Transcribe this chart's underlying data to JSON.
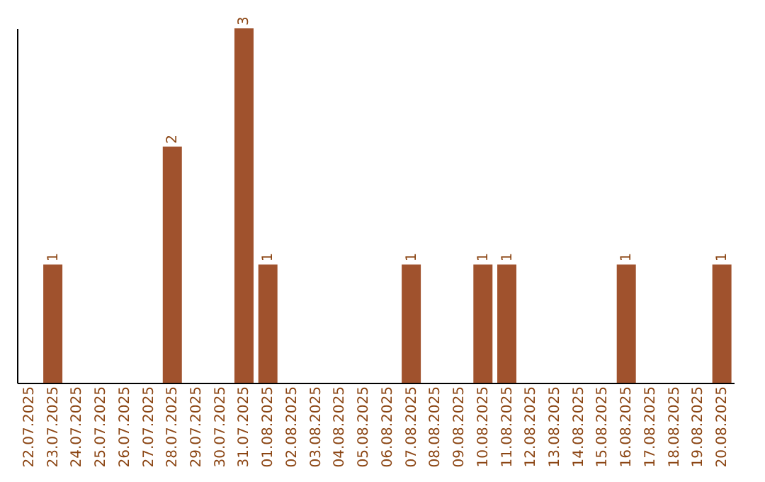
{
  "chart_data": {
    "type": "bar",
    "categories": [
      "22.07.2025",
      "23.07.2025",
      "24.07.2025",
      "25.07.2025",
      "26.07.2025",
      "27.07.2025",
      "28.07.2025",
      "29.07.2025",
      "30.07.2025",
      "31.07.2025",
      "01.08.2025",
      "02.08.2025",
      "03.08.2025",
      "04.08.2025",
      "05.08.2025",
      "06.08.2025",
      "07.08.2025",
      "08.08.2025",
      "09.08.2025",
      "10.08.2025",
      "11.08.2025",
      "12.08.2025",
      "13.08.2025",
      "14.08.2025",
      "15.08.2025",
      "16.08.2025",
      "17.08.2025",
      "18.08.2025",
      "19.08.2025",
      "20.08.2025"
    ],
    "values": [
      0,
      1,
      0,
      0,
      0,
      0,
      2,
      0,
      0,
      3,
      1,
      0,
      0,
      0,
      0,
      0,
      1,
      0,
      0,
      1,
      1,
      0,
      0,
      0,
      0,
      1,
      0,
      0,
      0,
      1
    ],
    "color": "#a0522d",
    "value_labels": [
      null,
      "1",
      null,
      null,
      null,
      null,
      "2",
      null,
      null,
      "3",
      "1",
      null,
      null,
      null,
      null,
      null,
      "1",
      null,
      null,
      "1",
      "1",
      null,
      null,
      null,
      null,
      "1",
      null,
      null,
      null,
      "1"
    ],
    "tick_labels": "x"
  }
}
